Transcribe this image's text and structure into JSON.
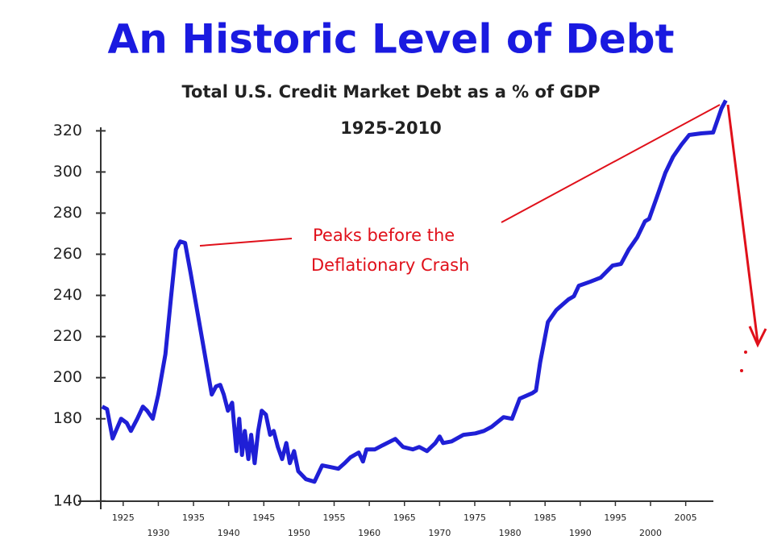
{
  "chart_data": {
    "type": "line",
    "title": "An Historic Level of Debt",
    "subtitle": "Total U.S. Credit Market Debt as a % of GDP",
    "period": "1925-2010",
    "annotation": [
      "Peaks before the",
      "Deflationary Crash"
    ],
    "color": "#1f1fd6",
    "xlim": [
      1918.6,
      2011
    ],
    "xticks": [
      1925,
      1930,
      1935,
      1940,
      1945,
      1950,
      1955,
      1960,
      1965,
      1970,
      1975,
      1980,
      1985,
      1990,
      1995,
      2000,
      2005
    ],
    "ylim": [
      136,
      337
    ],
    "yticks": [
      140,
      180,
      200,
      220,
      240,
      260,
      280,
      300,
      320
    ],
    "x": [
      1922.0,
      1922.7,
      1923.5,
      1924.7,
      1925.5,
      1926.1,
      1927.0,
      1927.8,
      1928.4,
      1929.2,
      1930.0,
      1931.0,
      1931.8,
      1932.5,
      1933.1,
      1933.8,
      1934.6,
      1935.6,
      1936.4,
      1937.0,
      1937.6,
      1938.2,
      1938.8,
      1939.3,
      1939.9,
      1940.5,
      1941.1,
      1941.5,
      1941.9,
      1942.3,
      1942.8,
      1943.2,
      1943.7,
      1944.2,
      1944.7,
      1945.3,
      1945.9,
      1946.4,
      1947.0,
      1947.6,
      1948.2,
      1948.7,
      1949.3,
      1949.9,
      1951.0,
      1952.2,
      1953.3,
      1954.5,
      1955.6,
      1956.5,
      1957.3,
      1958.5,
      1959.1,
      1959.6,
      1960.8,
      1961.9,
      1963.7,
      1964.8,
      1966.2,
      1967.1,
      1968.2,
      1969.4,
      1970.0,
      1970.5,
      1971.7,
      1973.4,
      1975.1,
      1976.3,
      1977.4,
      1979.1,
      1980.3,
      1981.4,
      1983.2,
      1983.7,
      1984.3,
      1985.4,
      1986.6,
      1988.3,
      1989.1,
      1989.8,
      1991.4,
      1992.9,
      1994.6,
      1995.8,
      1996.9,
      1998.1,
      1999.2,
      1999.8,
      2000.9,
      2002.1,
      2003.2,
      2004.4,
      2005.5,
      2007.2,
      2008.9,
      2010.1,
      2010.7
    ],
    "values": [
      185.9,
      184.7,
      170.4,
      180,
      178,
      174.1,
      180,
      185.9,
      183.9,
      180,
      191.8,
      211.4,
      238.8,
      262.3,
      266.2,
      265.5,
      250.6,
      231,
      215.3,
      203.5,
      191.8,
      195.7,
      196.5,
      191.8,
      183.9,
      187.8,
      164.3,
      180,
      162.4,
      174.1,
      160.4,
      172.2,
      158.4,
      174.1,
      183.9,
      182,
      172.2,
      174.1,
      166.3,
      160.4,
      168.2,
      158.4,
      164.3,
      154.5,
      150.6,
      149.4,
      157.3,
      156.5,
      155.7,
      158.4,
      161.2,
      163.6,
      159.2,
      165.1,
      165.1,
      167.1,
      170.2,
      166.3,
      165.1,
      166.3,
      164.3,
      168.2,
      171.4,
      168.2,
      169,
      172.2,
      172.9,
      174.1,
      176.1,
      180.8,
      180,
      189.8,
      192.5,
      193.7,
      207.4,
      227,
      232.9,
      238,
      239.6,
      244.7,
      246.6,
      248.6,
      254.5,
      255.3,
      262.3,
      268.2,
      276,
      277.2,
      287.8,
      299.6,
      307.4,
      313.3,
      318,
      318.8,
      319.2,
      330.9,
      334.8
    ]
  }
}
